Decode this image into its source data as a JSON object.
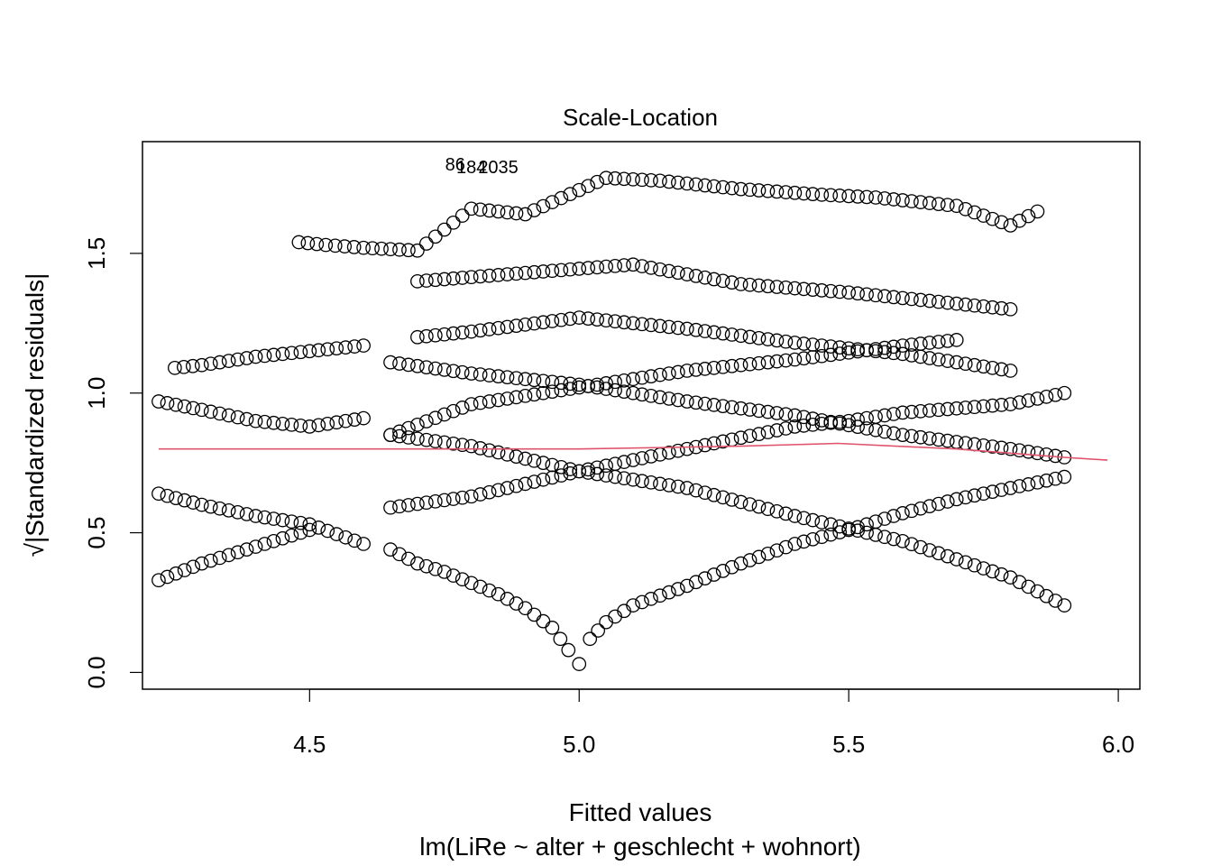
{
  "chart_data": {
    "type": "scatter",
    "title": "Scale-Location",
    "xlabel": "Fitted values",
    "subtitle": "lm(LiRe ~ alter + geschlecht + wohnort)",
    "ylabel": "√|Standardized residuals|",
    "xlim": [
      4.19,
      6.04
    ],
    "ylim": [
      -0.06,
      1.9
    ],
    "x_ticks": [
      {
        "value": 4.5,
        "label": "4.5"
      },
      {
        "value": 5.0,
        "label": "5.0"
      },
      {
        "value": 5.5,
        "label": "5.5"
      },
      {
        "value": 6.0,
        "label": "6.0"
      }
    ],
    "y_ticks": [
      {
        "value": 0.0,
        "label": "0.0"
      },
      {
        "value": 0.5,
        "label": "0.5"
      },
      {
        "value": 1.0,
        "label": "1.0"
      },
      {
        "value": 1.5,
        "label": "1.5"
      }
    ],
    "point_labels": [
      {
        "x": 4.77,
        "y": 1.82,
        "label": "86"
      },
      {
        "x": 4.8,
        "y": 1.81,
        "label": "184"
      },
      {
        "x": 4.85,
        "y": 1.81,
        "label": "2035"
      }
    ],
    "smooth_line": {
      "color": "#DF536B",
      "x": [
        4.22,
        4.6,
        5.0,
        5.3,
        5.48,
        5.7,
        5.9,
        5.98
      ],
      "y": [
        0.8,
        0.8,
        0.8,
        0.81,
        0.82,
        0.8,
        0.77,
        0.76
      ]
    },
    "series": [
      {
        "role": "v-curve-left",
        "x": [
          4.65,
          4.7,
          4.75,
          4.8,
          4.85,
          4.9,
          4.95,
          4.98,
          5.0
        ],
        "y": [
          0.44,
          0.39,
          0.36,
          0.32,
          0.28,
          0.23,
          0.16,
          0.08,
          0.03
        ]
      },
      {
        "role": "v-curve-right",
        "x": [
          5.02,
          5.05,
          5.1,
          5.2,
          5.3,
          5.4,
          5.5,
          5.6,
          5.7,
          5.8,
          5.9
        ],
        "y": [
          0.12,
          0.18,
          0.24,
          0.31,
          0.39,
          0.46,
          0.51,
          0.57,
          0.62,
          0.66,
          0.7
        ]
      },
      {
        "role": "descending-mid",
        "x": [
          4.65,
          4.8,
          5.0,
          5.2,
          5.4,
          5.6,
          5.8,
          5.9
        ],
        "y": [
          0.85,
          0.81,
          0.72,
          0.66,
          0.56,
          0.47,
          0.34,
          0.24
        ]
      },
      {
        "role": "ascending-mid",
        "x": [
          4.65,
          4.8,
          5.0,
          5.2,
          5.4,
          5.5,
          5.6,
          5.8,
          5.9
        ],
        "y": [
          0.59,
          0.63,
          0.72,
          0.8,
          0.88,
          0.9,
          0.93,
          0.96,
          1.0
        ]
      },
      {
        "role": "descending-upper",
        "x": [
          4.65,
          4.8,
          5.0,
          5.2,
          5.4,
          5.6,
          5.8,
          5.9
        ],
        "y": [
          1.11,
          1.07,
          1.03,
          0.97,
          0.92,
          0.85,
          0.8,
          0.77
        ]
      },
      {
        "role": "ascending-upper",
        "x": [
          4.65,
          4.8,
          5.0,
          5.2,
          5.4,
          5.6,
          5.7
        ],
        "y": [
          0.85,
          0.96,
          1.02,
          1.08,
          1.12,
          1.17,
          1.19
        ]
      },
      {
        "role": "upper-band",
        "x": [
          4.7,
          4.8,
          5.0,
          5.2,
          5.4,
          5.6,
          5.8
        ],
        "y": [
          1.2,
          1.22,
          1.27,
          1.23,
          1.18,
          1.14,
          1.08
        ]
      },
      {
        "role": "upper-band-2",
        "x": [
          4.7,
          4.9,
          5.1,
          5.3,
          5.5,
          5.7,
          5.8
        ],
        "y": [
          1.4,
          1.43,
          1.46,
          1.39,
          1.36,
          1.32,
          1.3
        ]
      },
      {
        "role": "left-lines",
        "x": [
          4.22,
          4.3,
          4.4,
          4.5,
          4.6
        ],
        "y": [
          0.64,
          0.6,
          0.56,
          0.53,
          0.46
        ]
      },
      {
        "role": "left-low",
        "x": [
          4.22,
          4.3,
          4.4,
          4.5
        ],
        "y": [
          0.33,
          0.39,
          0.45,
          0.51
        ]
      },
      {
        "role": "left-mid",
        "x": [
          4.22,
          4.3,
          4.4,
          4.5,
          4.6
        ],
        "y": [
          0.97,
          0.94,
          0.9,
          0.88,
          0.91
        ]
      },
      {
        "role": "left-up",
        "x": [
          4.25,
          4.3,
          4.4,
          4.5,
          4.6
        ],
        "y": [
          1.09,
          1.1,
          1.13,
          1.15,
          1.17
        ]
      },
      {
        "role": "top-scatter",
        "x": [
          4.48,
          4.53,
          4.6,
          4.7,
          4.8,
          4.9,
          5.05,
          5.15,
          5.3,
          5.45,
          5.55,
          5.7,
          5.8,
          5.85
        ],
        "y": [
          1.54,
          1.53,
          1.52,
          1.51,
          1.66,
          1.64,
          1.77,
          1.76,
          1.73,
          1.71,
          1.7,
          1.67,
          1.6,
          1.65
        ]
      }
    ]
  }
}
